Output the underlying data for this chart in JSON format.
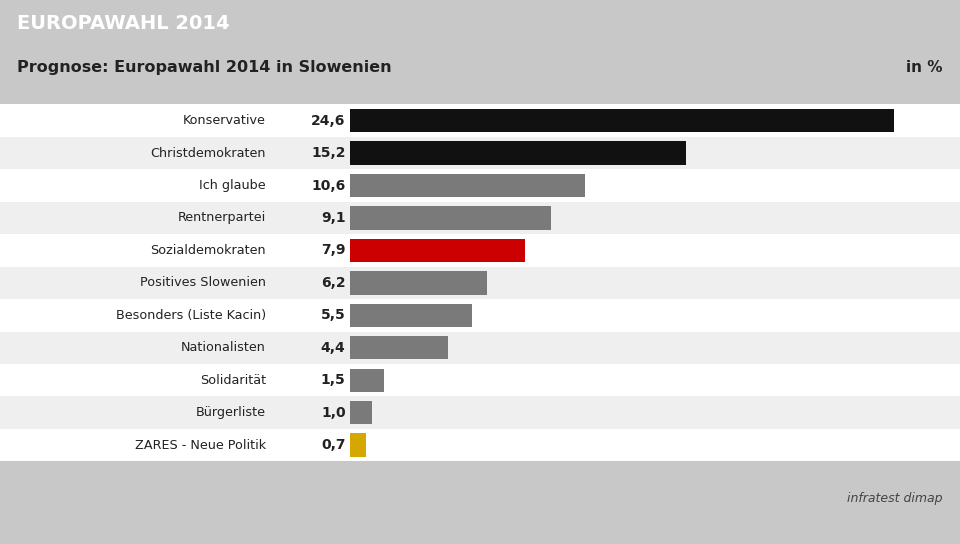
{
  "title_banner": "EUROPAWAHL 2014",
  "subtitle": "Prognose: Europawahl 2014 in Slowenien",
  "unit_label": "in %",
  "source": "infratest dimap",
  "categories": [
    "Konservative",
    "Christdemokraten",
    "Ich glaube",
    "Rentnerpartei",
    "Sozialdemokraten",
    "Positives Slowenien",
    "Besonders (Liste Kacin)",
    "Nationalisten",
    "Solidarität",
    "Bürgerliste",
    "ZARES - Neue Politik"
  ],
  "values": [
    24.6,
    15.2,
    10.6,
    9.1,
    7.9,
    6.2,
    5.5,
    4.4,
    1.5,
    1.0,
    0.7
  ],
  "value_labels": [
    "24,6",
    "15,2",
    "10,6",
    "9,1",
    "7,9",
    "6,2",
    "5,5",
    "4,4",
    "1,5",
    "1,0",
    "0,7"
  ],
  "bar_colors": [
    "#111111",
    "#111111",
    "#7a7a7a",
    "#7a7a7a",
    "#cc0000",
    "#7a7a7a",
    "#7a7a7a",
    "#7a7a7a",
    "#7a7a7a",
    "#7a7a7a",
    "#d4a800"
  ],
  "background_color": "#c8c8c8",
  "banner_color": "#003380",
  "banner_text_color": "#ffffff",
  "subtitle_text_color": "#222222",
  "row_colors": [
    "#ffffff",
    "#efefef"
  ],
  "xlim_max": 26.5,
  "fig_width": 9.6,
  "fig_height": 5.44,
  "dpi": 100
}
